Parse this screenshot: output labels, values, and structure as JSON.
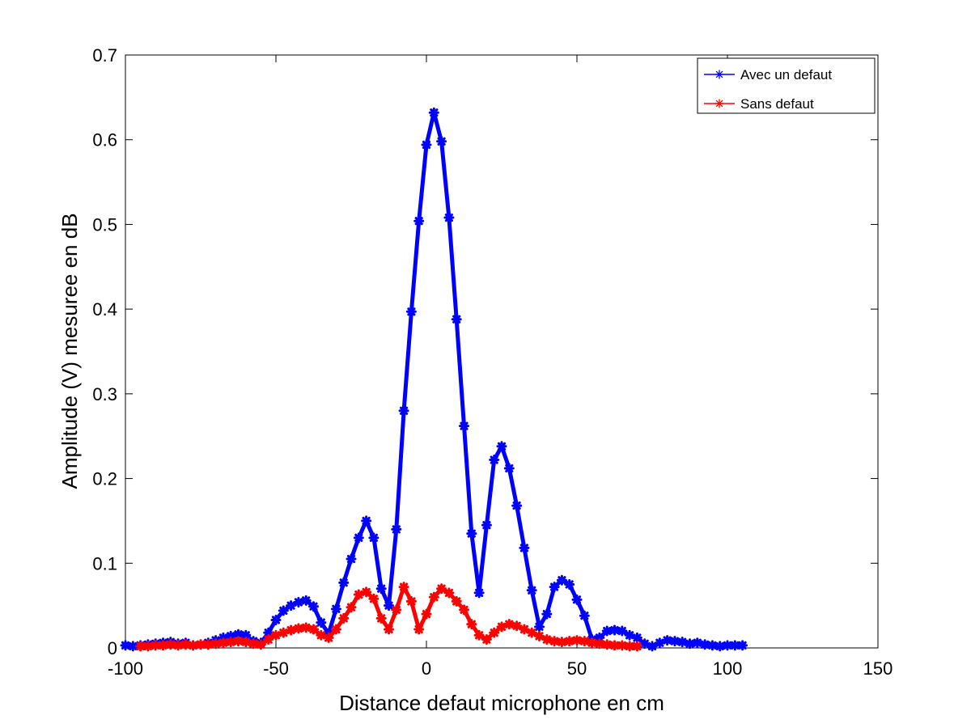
{
  "chart_data": {
    "type": "line",
    "title": "",
    "xlabel": "Distance defaut microphone en cm",
    "ylabel": "Amplitude (V) mesuree en dB",
    "xlim": [
      -100,
      150
    ],
    "ylim": [
      0,
      0.7
    ],
    "x_ticks": [
      "-100",
      "-50",
      "0",
      "50",
      "100",
      "150"
    ],
    "y_ticks": [
      "0",
      "0.1",
      "0.2",
      "0.3",
      "0.4",
      "0.5",
      "0.6",
      "0.7"
    ],
    "grid": false,
    "legend_position": "top-right",
    "marker": "asterisk",
    "series": [
      {
        "name": "Avec un defaut",
        "color": "#0000ff",
        "x": [
          -100,
          -97.5,
          -95,
          -92.5,
          -90,
          -87.5,
          -85,
          -82.5,
          -80,
          -77.5,
          -75,
          -72.5,
          -70,
          -67.5,
          -65,
          -62.5,
          -60,
          -57.5,
          -55,
          -52.5,
          -50,
          -47.5,
          -45,
          -42.5,
          -40,
          -37.5,
          -35,
          -32.5,
          -30,
          -27.5,
          -25,
          -22.5,
          -20,
          -17.5,
          -15,
          -12.5,
          -10,
          -7.5,
          -5,
          -2.5,
          0,
          2.5,
          5,
          7.5,
          10,
          12.5,
          15,
          17.5,
          20,
          22.5,
          25,
          27.5,
          30,
          32.5,
          35,
          37.5,
          40,
          42.5,
          45,
          47.5,
          50,
          52.5,
          55,
          57.5,
          60,
          62.5,
          65,
          67.5,
          70,
          72.5,
          75,
          77.5,
          80,
          82.5,
          85,
          87.5,
          90,
          92.5,
          95,
          97.5,
          100,
          102.5,
          105
        ],
        "y": [
          0.003,
          0.002,
          0.003,
          0.004,
          0.005,
          0.006,
          0.007,
          0.005,
          0.006,
          0.003,
          0.004,
          0.006,
          0.009,
          0.012,
          0.014,
          0.016,
          0.015,
          0.008,
          0.006,
          0.018,
          0.033,
          0.044,
          0.05,
          0.054,
          0.056,
          0.049,
          0.03,
          0.017,
          0.046,
          0.077,
          0.105,
          0.13,
          0.15,
          0.13,
          0.07,
          0.05,
          0.14,
          0.28,
          0.397,
          0.504,
          0.594,
          0.632,
          0.598,
          0.508,
          0.388,
          0.262,
          0.135,
          0.065,
          0.145,
          0.222,
          0.238,
          0.212,
          0.168,
          0.118,
          0.068,
          0.025,
          0.04,
          0.072,
          0.08,
          0.075,
          0.057,
          0.038,
          0.01,
          0.012,
          0.02,
          0.021,
          0.02,
          0.015,
          0.012,
          0.005,
          0.002,
          0.006,
          0.009,
          0.008,
          0.007,
          0.005,
          0.006,
          0.004,
          0.003,
          0.002,
          0.003,
          0.003,
          0.003
        ]
      },
      {
        "name": "Sans defaut",
        "color": "#ff0000",
        "x": [
          -95,
          -92.5,
          -90,
          -87.5,
          -85,
          -82.5,
          -80,
          -77.5,
          -75,
          -72.5,
          -70,
          -67.5,
          -65,
          -62.5,
          -60,
          -57.5,
          -55,
          -52.5,
          -50,
          -47.5,
          -45,
          -42.5,
          -40,
          -37.5,
          -35,
          -32.5,
          -30,
          -27.5,
          -25,
          -22.5,
          -20,
          -17.5,
          -15,
          -12.5,
          -10,
          -7.5,
          -5,
          -2.5,
          0,
          2.5,
          5,
          7.5,
          10,
          12.5,
          15,
          17.5,
          20,
          22.5,
          25,
          27.5,
          30,
          32.5,
          35,
          37.5,
          40,
          42.5,
          45,
          47.5,
          50,
          52.5,
          55,
          57.5,
          60,
          62.5,
          65,
          67.5,
          70
        ],
        "y": [
          0.002,
          0.002,
          0.003,
          0.003,
          0.004,
          0.003,
          0.004,
          0.003,
          0.004,
          0.004,
          0.005,
          0.006,
          0.007,
          0.008,
          0.007,
          0.005,
          0.004,
          0.01,
          0.015,
          0.018,
          0.021,
          0.023,
          0.024,
          0.022,
          0.015,
          0.012,
          0.022,
          0.035,
          0.048,
          0.063,
          0.066,
          0.058,
          0.035,
          0.022,
          0.045,
          0.072,
          0.055,
          0.022,
          0.04,
          0.06,
          0.07,
          0.065,
          0.055,
          0.045,
          0.028,
          0.015,
          0.01,
          0.018,
          0.025,
          0.028,
          0.026,
          0.022,
          0.018,
          0.014,
          0.01,
          0.008,
          0.007,
          0.008,
          0.009,
          0.008,
          0.006,
          0.005,
          0.004,
          0.003,
          0.003,
          0.002,
          0.002
        ]
      }
    ]
  }
}
